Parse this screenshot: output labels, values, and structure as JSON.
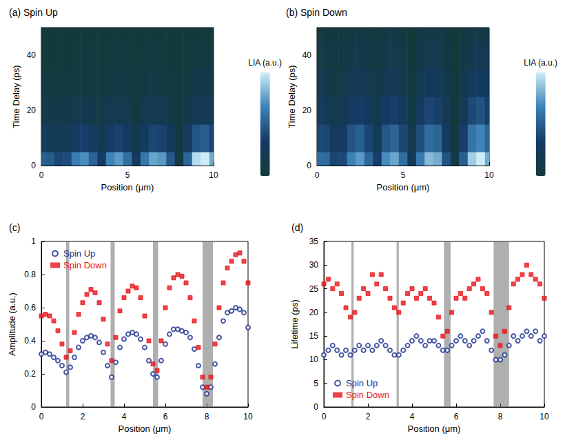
{
  "chart_data": [
    {
      "type": "heatmap",
      "title": "(a) Spin Up",
      "xlabel": "Position (μm)",
      "ylabel": "Time Delay (ps)",
      "zlabel": "LIA (a.u.)",
      "x": [
        0,
        0.5,
        1,
        1.5,
        2,
        2.5,
        3,
        3.5,
        4,
        4.5,
        5,
        5.5,
        6,
        6.5,
        7,
        7.5,
        8,
        8.5,
        9,
        9.5,
        10
      ],
      "y": [
        0,
        10,
        20,
        30,
        40,
        50
      ],
      "z": [
        [
          0.32,
          0.31,
          0.25,
          0.27,
          0.4,
          0.43,
          0.33,
          0.22,
          0.41,
          0.45,
          0.36,
          0.19,
          0.38,
          0.47,
          0.45,
          0.3,
          0.08,
          0.34,
          0.57,
          0.6,
          0.48
        ],
        [
          0.18,
          0.17,
          0.15,
          0.15,
          0.21,
          0.23,
          0.18,
          0.13,
          0.22,
          0.24,
          0.2,
          0.12,
          0.2,
          0.25,
          0.24,
          0.17,
          0.07,
          0.19,
          0.29,
          0.31,
          0.25
        ],
        [
          0.1,
          0.1,
          0.08,
          0.09,
          0.11,
          0.12,
          0.1,
          0.08,
          0.12,
          0.12,
          0.11,
          0.07,
          0.11,
          0.13,
          0.12,
          0.09,
          0.05,
          0.1,
          0.15,
          0.16,
          0.13
        ],
        [
          0.06,
          0.06,
          0.06,
          0.06,
          0.07,
          0.07,
          0.06,
          0.05,
          0.07,
          0.08,
          0.07,
          0.05,
          0.07,
          0.08,
          0.08,
          0.06,
          0.04,
          0.06,
          0.09,
          0.09,
          0.08
        ],
        [
          0.05,
          0.04,
          0.04,
          0.04,
          0.05,
          0.05,
          0.05,
          0.04,
          0.05,
          0.05,
          0.05,
          0.04,
          0.05,
          0.05,
          0.05,
          0.04,
          0.03,
          0.05,
          0.06,
          0.06,
          0.05
        ],
        [
          0.04,
          0.03,
          0.03,
          0.04,
          0.04,
          0.04,
          0.03,
          0.03,
          0.04,
          0.04,
          0.04,
          0.03,
          0.04,
          0.04,
          0.04,
          0.03,
          0.03,
          0.04,
          0.04,
          0.04,
          0.04
        ]
      ],
      "xlim": [
        0,
        10
      ],
      "xticks": [
        0,
        5,
        10
      ],
      "ylim": [
        0,
        50
      ],
      "yticks": [
        0,
        20,
        40
      ]
    },
    {
      "type": "heatmap",
      "title": "(b) Spin Down",
      "xlabel": "Position (μm)",
      "ylabel": "Time Delay (ps)",
      "zlabel": "LIA (a.u.)",
      "x": [
        0,
        0.5,
        1,
        1.5,
        2,
        2.5,
        3,
        3.5,
        4,
        4.5,
        5,
        5.5,
        6,
        6.5,
        7,
        7.5,
        8,
        8.5,
        9,
        9.5,
        10
      ],
      "y": [
        0,
        10,
        20,
        30,
        40,
        50
      ],
      "z": [
        [
          0.55,
          0.54,
          0.38,
          0.4,
          0.63,
          0.7,
          0.53,
          0.35,
          0.66,
          0.73,
          0.55,
          0.24,
          0.6,
          0.79,
          0.75,
          0.44,
          0.12,
          0.49,
          0.84,
          0.93,
          0.75
        ],
        [
          0.39,
          0.38,
          0.27,
          0.29,
          0.44,
          0.49,
          0.38,
          0.25,
          0.46,
          0.51,
          0.39,
          0.18,
          0.42,
          0.55,
          0.52,
          0.31,
          0.1,
          0.35,
          0.58,
          0.64,
          0.52
        ],
        [
          0.27,
          0.26,
          0.19,
          0.2,
          0.3,
          0.34,
          0.26,
          0.18,
          0.32,
          0.35,
          0.27,
          0.13,
          0.29,
          0.38,
          0.36,
          0.22,
          0.07,
          0.24,
          0.4,
          0.44,
          0.36
        ],
        [
          0.19,
          0.18,
          0.13,
          0.14,
          0.21,
          0.23,
          0.18,
          0.13,
          0.22,
          0.24,
          0.19,
          0.09,
          0.2,
          0.26,
          0.25,
          0.15,
          0.06,
          0.17,
          0.27,
          0.3,
          0.25
        ],
        [
          0.13,
          0.13,
          0.1,
          0.1,
          0.15,
          0.16,
          0.13,
          0.09,
          0.15,
          0.17,
          0.13,
          0.07,
          0.14,
          0.18,
          0.17,
          0.11,
          0.04,
          0.12,
          0.19,
          0.21,
          0.17
        ],
        [
          0.09,
          0.09,
          0.07,
          0.07,
          0.1,
          0.11,
          0.09,
          0.07,
          0.1,
          0.11,
          0.09,
          0.05,
          0.1,
          0.12,
          0.12,
          0.08,
          0.04,
          0.08,
          0.13,
          0.14,
          0.12
        ]
      ],
      "xlim": [
        0,
        10
      ],
      "xticks": [
        0,
        5,
        10
      ],
      "ylim": [
        0,
        50
      ],
      "yticks": [
        0,
        20,
        40
      ]
    },
    {
      "type": "scatter",
      "title": "(c)",
      "xlabel": "Position (μm)",
      "ylabel": "Amplitude (a.u.)",
      "x": [
        0,
        0.2,
        0.4,
        0.6,
        0.8,
        1,
        1.2,
        1.4,
        1.6,
        1.8,
        2,
        2.2,
        2.4,
        2.6,
        2.8,
        3,
        3.2,
        3.4,
        3.6,
        3.8,
        4,
        4.2,
        4.4,
        4.6,
        4.8,
        5,
        5.2,
        5.4,
        5.6,
        5.8,
        6,
        6.2,
        6.4,
        6.6,
        6.8,
        7,
        7.2,
        7.4,
        7.6,
        7.8,
        8,
        8.2,
        8.4,
        8.6,
        8.8,
        9,
        9.2,
        9.4,
        9.6,
        9.8,
        10
      ],
      "series": [
        {
          "name": "Spin Up",
          "color": "#1a2e8c",
          "marker": "open circle",
          "values": [
            0.32,
            0.33,
            0.32,
            0.3,
            0.28,
            0.25,
            0.21,
            0.24,
            0.3,
            0.36,
            0.4,
            0.42,
            0.43,
            0.42,
            0.39,
            0.33,
            0.25,
            0.18,
            0.27,
            0.36,
            0.41,
            0.44,
            0.45,
            0.44,
            0.41,
            0.36,
            0.28,
            0.2,
            0.18,
            0.28,
            0.38,
            0.44,
            0.47,
            0.47,
            0.46,
            0.45,
            0.42,
            0.35,
            0.25,
            0.12,
            0.08,
            0.12,
            0.26,
            0.42,
            0.52,
            0.57,
            0.58,
            0.6,
            0.59,
            0.57,
            0.48
          ]
        },
        {
          "name": "Spin Down",
          "color": "#e8151b",
          "marker": "square",
          "values": [
            0.55,
            0.56,
            0.55,
            0.52,
            0.46,
            0.38,
            0.3,
            0.34,
            0.45,
            0.56,
            0.63,
            0.68,
            0.71,
            0.69,
            0.63,
            0.53,
            0.38,
            0.28,
            0.42,
            0.58,
            0.66,
            0.7,
            0.73,
            0.72,
            0.66,
            0.55,
            0.4,
            0.26,
            0.22,
            0.4,
            0.6,
            0.72,
            0.78,
            0.8,
            0.79,
            0.75,
            0.66,
            0.52,
            0.36,
            0.18,
            0.12,
            0.18,
            0.38,
            0.6,
            0.75,
            0.84,
            0.88,
            0.92,
            0.93,
            0.88,
            0.75
          ]
        }
      ],
      "bands": [
        [
          1.2,
          1.35
        ],
        [
          3.35,
          3.55
        ],
        [
          5.4,
          5.65
        ],
        [
          7.8,
          8.3
        ]
      ],
      "xlim": [
        0,
        10
      ],
      "xticks": [
        0,
        2,
        4,
        6,
        8,
        10
      ],
      "ylim": [
        0,
        1
      ],
      "yticks": [
        0,
        0.2,
        0.4,
        0.6,
        0.8,
        1
      ],
      "legend": "upper left"
    },
    {
      "type": "scatter",
      "title": "(d)",
      "xlabel": "Position (μm)",
      "ylabel": "Lifetime (ps)",
      "x": [
        0,
        0.2,
        0.4,
        0.6,
        0.8,
        1,
        1.2,
        1.4,
        1.6,
        1.8,
        2,
        2.2,
        2.4,
        2.6,
        2.8,
        3,
        3.2,
        3.4,
        3.6,
        3.8,
        4,
        4.2,
        4.4,
        4.6,
        4.8,
        5,
        5.2,
        5.4,
        5.6,
        5.8,
        6,
        6.2,
        6.4,
        6.6,
        6.8,
        7,
        7.2,
        7.4,
        7.6,
        7.8,
        8,
        8.2,
        8.4,
        8.6,
        8.8,
        9,
        9.2,
        9.4,
        9.6,
        9.8,
        10
      ],
      "series": [
        {
          "name": "Spin Up",
          "color": "#1a2e8c",
          "marker": "open circle",
          "values": [
            11,
            12,
            13,
            12,
            11,
            12,
            11,
            12,
            13,
            12,
            13,
            12,
            13,
            14,
            13,
            12,
            11,
            11,
            12,
            13,
            14,
            15,
            14,
            13,
            14,
            14,
            13,
            12,
            12,
            13,
            14,
            15,
            14,
            13,
            14,
            15,
            16,
            14,
            12,
            10,
            10,
            11,
            13,
            15,
            14,
            15,
            16,
            15,
            16,
            14,
            15
          ]
        },
        {
          "name": "Spin Down",
          "color": "#e8151b",
          "marker": "square",
          "values": [
            26,
            27,
            25,
            26,
            24,
            21,
            19,
            20,
            23,
            25,
            24,
            28,
            26,
            28,
            25,
            23,
            21,
            20,
            22,
            24,
            25,
            23,
            24,
            25,
            23,
            22,
            19,
            15,
            16,
            20,
            23,
            24,
            23,
            25,
            26,
            27,
            25,
            24,
            20,
            15,
            13,
            16,
            21,
            26,
            27,
            28,
            30,
            28,
            27,
            26,
            23
          ]
        }
      ],
      "bands": [
        [
          1.25,
          1.35
        ],
        [
          3.3,
          3.4
        ],
        [
          5.45,
          5.75
        ],
        [
          7.7,
          8.4
        ]
      ],
      "xlim": [
        0,
        10
      ],
      "xticks": [
        0,
        2,
        4,
        6,
        8,
        10
      ],
      "ylim": [
        0,
        35
      ],
      "yticks": [
        0,
        5,
        10,
        15,
        20,
        25,
        30,
        35
      ],
      "legend": "lower left"
    }
  ]
}
